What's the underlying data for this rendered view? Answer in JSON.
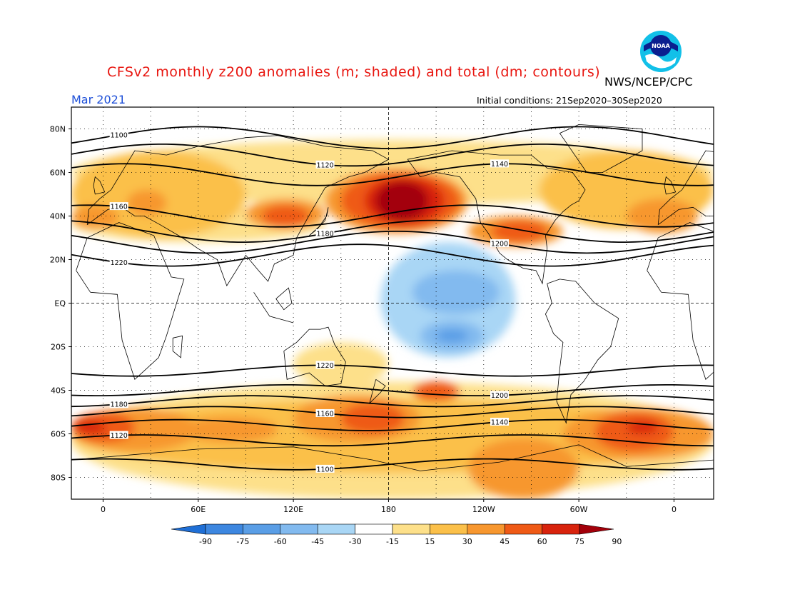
{
  "header": {
    "title": "CFSv2 monthly z200 anomalies (m; shaded) and total (dm; contours)",
    "agency": "NWS/NCEP/CPC",
    "month": "Mar 2021",
    "initial_conditions": "Initial conditions: 21Sep2020–30Sep2020",
    "logo_text": "NOAA"
  },
  "map": {
    "lat_labels": [
      "80N",
      "60N",
      "40N",
      "20N",
      "EQ",
      "20S",
      "40S",
      "60S",
      "80S"
    ],
    "lat_values": [
      80,
      60,
      40,
      20,
      0,
      -20,
      -40,
      -60,
      -80
    ],
    "lon_labels": [
      "0",
      "60E",
      "120E",
      "180",
      "120W",
      "60W",
      "0"
    ],
    "lon_values": [
      0,
      60,
      120,
      180,
      240,
      300,
      360
    ],
    "lon_range": [
      -20,
      385
    ],
    "lat_range": [
      -90,
      90
    ]
  },
  "contours": [
    {
      "label": "1100",
      "lat": 76
    },
    {
      "label": "1120",
      "lat": 68
    },
    {
      "label": "1140",
      "lat": 59
    },
    {
      "label": "1160",
      "lat": 40
    },
    {
      "label": "1180",
      "lat": 33
    },
    {
      "label": "1200",
      "lat": 28
    },
    {
      "label": "1220",
      "lat": 22
    },
    {
      "label": "1220",
      "lat": -31
    },
    {
      "label": "1200",
      "lat": -40
    },
    {
      "label": "1180",
      "lat": -45
    },
    {
      "label": "1160",
      "lat": -50
    },
    {
      "label": "1140",
      "lat": -56
    },
    {
      "label": "1120",
      "lat": -63
    },
    {
      "label": "1100",
      "lat": -74
    }
  ],
  "colorbar": {
    "ticks": [
      "-90",
      "-75",
      "-60",
      "-45",
      "-30",
      "-15",
      "15",
      "30",
      "45",
      "60",
      "75",
      "90"
    ],
    "colors": [
      "#1f6fd6",
      "#3d87e0",
      "#5a9ee6",
      "#82baef",
      "#a9d6f5",
      "#ffffff",
      "#fde08a",
      "#fbc04a",
      "#f7972f",
      "#ef5a16",
      "#d8230d",
      "#a3000a"
    ]
  }
}
